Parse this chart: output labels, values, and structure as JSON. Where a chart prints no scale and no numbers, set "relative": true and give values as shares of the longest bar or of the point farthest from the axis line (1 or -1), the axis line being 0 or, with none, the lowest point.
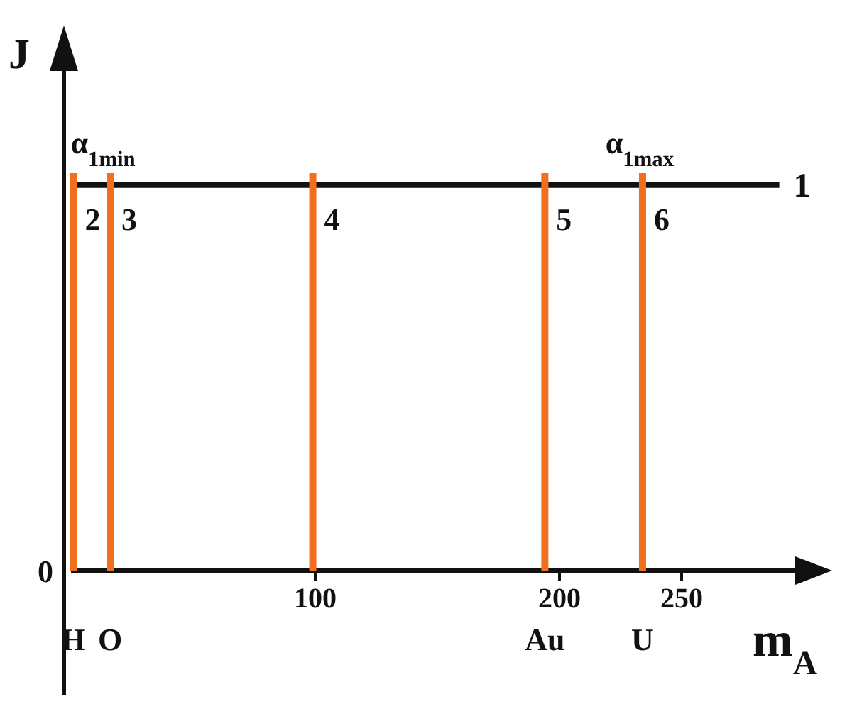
{
  "chart_data": {
    "type": "bar",
    "relative": true,
    "series": [
      {
        "type": "line",
        "name": "1",
        "color": "#111111",
        "x": [
          0,
          290
        ],
        "values": [
          0.97,
          0.97
        ]
      },
      {
        "name": "H",
        "color": "#f07020",
        "x": [
          1
        ],
        "values": [
          1
        ]
      },
      {
        "name": "O",
        "color": "#f07020",
        "x": [
          16
        ],
        "values": [
          1
        ]
      },
      {
        "color": "#f07020",
        "x": [
          99
        ],
        "values": [
          1
        ]
      },
      {
        "name": "Au",
        "color": "#f07020",
        "x": [
          194
        ],
        "values": [
          1
        ]
      },
      {
        "name": "U",
        "color": "#f07020",
        "x": [
          234
        ],
        "values": [
          1
        ]
      }
    ],
    "xlim": [
      0,
      300
    ],
    "xticks": [
      100,
      200,
      250
    ],
    "ylabel": "J",
    "xlabel": "m$_{A}$",
    "annotations": [
      "0",
      {
        "text": "2",
        "x": 1,
        "y": 1
      },
      {
        "text": "α$_{1min}$",
        "x": 1,
        "y": 1
      },
      {
        "text": "3",
        "x": 16,
        "y": 1
      },
      {
        "text": "4",
        "x": 99,
        "y": 1
      },
      {
        "text": "5",
        "x": 194,
        "y": 1
      },
      {
        "text": "6",
        "x": 234,
        "y": 1
      },
      {
        "text": "α$_{1max}$",
        "x": 234,
        "y": 1
      }
    ]
  }
}
